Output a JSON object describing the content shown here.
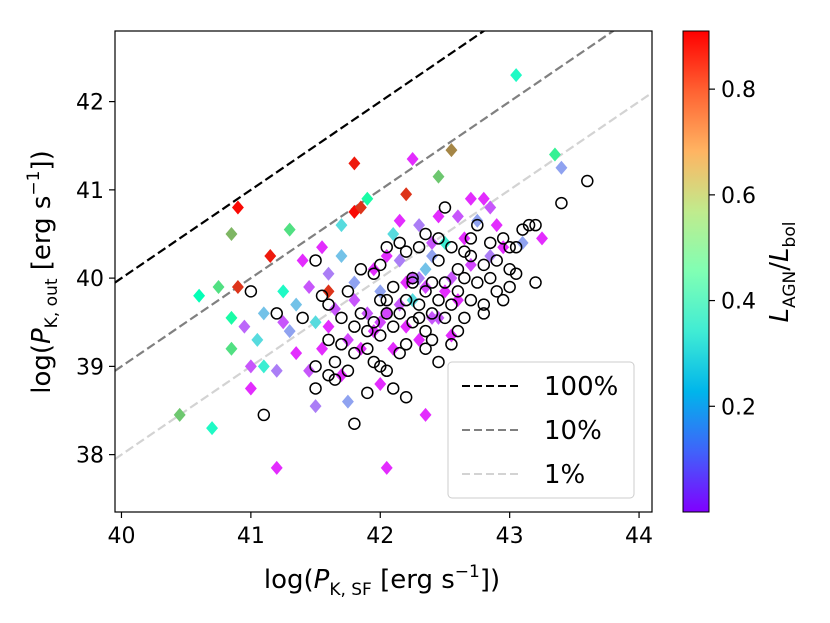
{
  "chart_data": {
    "type": "scatter",
    "xlabel": "log(P_K,SF [erg s^-1])",
    "ylabel": "log(P_K,out [erg s^-1])",
    "xlim": [
      39.95,
      44.1
    ],
    "ylim": [
      37.35,
      42.8
    ],
    "xticks": [
      40,
      41,
      42,
      43,
      44
    ],
    "yticks": [
      38,
      39,
      40,
      41,
      42
    ],
    "grid": false,
    "colorbar": {
      "label": "L_AGN/L_bol",
      "range": [
        0.0,
        0.91
      ],
      "ticks": [
        0.2,
        0.4,
        0.6,
        0.8
      ],
      "colormap": "rainbow"
    },
    "reference_lines": [
      {
        "name": "100%",
        "offset": 0,
        "color": "#000000"
      },
      {
        "name": "10%",
        "offset": -1,
        "color": "#808080"
      },
      {
        "name": "1%",
        "offset": -2,
        "color": "#d3d3d3"
      }
    ],
    "legend": {
      "location": "lower-right",
      "entries": [
        "100%",
        "10%",
        "1%"
      ]
    },
    "open_circles": [
      [
        41.1,
        38.45
      ],
      [
        41.2,
        39.6
      ],
      [
        41.5,
        38.75
      ],
      [
        41.5,
        39.0
      ],
      [
        41.55,
        39.8
      ],
      [
        41.6,
        38.9
      ],
      [
        41.6,
        39.3
      ],
      [
        41.65,
        39.05
      ],
      [
        41.7,
        39.55
      ],
      [
        41.7,
        39.25
      ],
      [
        41.75,
        38.95
      ],
      [
        41.8,
        39.15
      ],
      [
        41.8,
        39.45
      ],
      [
        41.8,
        38.35
      ],
      [
        41.85,
        39.6
      ],
      [
        41.9,
        39.2
      ],
      [
        41.9,
        38.7
      ],
      [
        41.95,
        39.5
      ],
      [
        41.95,
        39.05
      ],
      [
        42.0,
        39.75
      ],
      [
        42.0,
        39.35
      ],
      [
        42.0,
        40.15
      ],
      [
        42.05,
        39.6
      ],
      [
        42.05,
        38.95
      ],
      [
        42.1,
        39.9
      ],
      [
        42.1,
        39.45
      ],
      [
        42.1,
        38.75
      ],
      [
        42.15,
        39.6
      ],
      [
        42.15,
        40.4
      ],
      [
        42.2,
        39.25
      ],
      [
        42.2,
        39.75
      ],
      [
        42.25,
        39.5
      ],
      [
        42.25,
        39.95
      ],
      [
        42.3,
        39.7
      ],
      [
        42.3,
        40.35
      ],
      [
        42.35,
        39.4
      ],
      [
        42.35,
        39.85
      ],
      [
        42.35,
        40.5
      ],
      [
        42.4,
        39.6
      ],
      [
        42.4,
        39.95
      ],
      [
        42.45,
        39.75
      ],
      [
        42.45,
        40.2
      ],
      [
        42.45,
        39.05
      ],
      [
        42.5,
        39.55
      ],
      [
        42.5,
        39.95
      ],
      [
        42.55,
        40.35
      ],
      [
        42.55,
        39.7
      ],
      [
        42.6,
        40.1
      ],
      [
        42.6,
        39.85
      ],
      [
        42.65,
        39.55
      ],
      [
        42.65,
        40.0
      ],
      [
        42.7,
        39.75
      ],
      [
        42.7,
        40.45
      ],
      [
        42.75,
        39.95
      ],
      [
        42.75,
        40.6
      ],
      [
        42.8,
        39.7
      ],
      [
        42.85,
        40.0
      ],
      [
        42.9,
        40.2
      ],
      [
        42.9,
        39.85
      ],
      [
        42.95,
        40.45
      ],
      [
        43.0,
        40.1
      ],
      [
        43.0,
        39.9
      ],
      [
        43.05,
        40.35
      ],
      [
        43.1,
        40.55
      ],
      [
        43.15,
        40.6
      ],
      [
        43.2,
        39.95
      ],
      [
        43.2,
        40.6
      ],
      [
        43.4,
        40.85
      ],
      [
        43.6,
        41.1
      ],
      [
        41.0,
        39.85
      ],
      [
        41.5,
        40.2
      ],
      [
        41.85,
        40.1
      ],
      [
        42.05,
        40.35
      ],
      [
        42.2,
        40.3
      ],
      [
        42.35,
        39.2
      ],
      [
        42.5,
        40.8
      ],
      [
        42.7,
        40.25
      ],
      [
        42.85,
        40.4
      ],
      [
        41.4,
        39.55
      ],
      [
        41.6,
        39.7
      ],
      [
        41.75,
        39.85
      ],
      [
        41.9,
        39.4
      ],
      [
        42.0,
        39.0
      ],
      [
        42.15,
        39.15
      ],
      [
        42.3,
        39.55
      ],
      [
        42.4,
        39.3
      ],
      [
        42.6,
        39.4
      ],
      [
        42.8,
        39.6
      ],
      [
        42.95,
        39.75
      ],
      [
        43.05,
        40.05
      ],
      [
        42.25,
        40.0
      ],
      [
        42.45,
        40.45
      ],
      [
        42.65,
        40.3
      ],
      [
        42.2,
        38.65
      ],
      [
        41.95,
        40.05
      ],
      [
        42.55,
        39.25
      ],
      [
        42.8,
        40.15
      ],
      [
        41.65,
        38.85
      ],
      [
        43.0,
        40.35
      ],
      [
        42.05,
        39.75
      ]
    ],
    "diamonds": [
      [
        40.45,
        38.45,
        0.65
      ],
      [
        40.6,
        39.8,
        0.45
      ],
      [
        40.7,
        38.3,
        0.4
      ],
      [
        40.75,
        39.9,
        0.6
      ],
      [
        40.85,
        39.55,
        0.5
      ],
      [
        40.85,
        39.2,
        0.6
      ],
      [
        40.85,
        40.5,
        0.68
      ],
      [
        40.9,
        40.8,
        0.9
      ],
      [
        40.9,
        39.9,
        0.85
      ],
      [
        40.95,
        39.45,
        0.12
      ],
      [
        41.0,
        39.0,
        0.1
      ],
      [
        41.0,
        38.75,
        0.05
      ],
      [
        41.05,
        39.3,
        0.3
      ],
      [
        41.1,
        39.0,
        0.35
      ],
      [
        41.1,
        39.6,
        0.25
      ],
      [
        41.15,
        40.25,
        0.88
      ],
      [
        41.2,
        38.95,
        0.15
      ],
      [
        41.2,
        37.85,
        0.05
      ],
      [
        41.25,
        39.85,
        0.4
      ],
      [
        41.25,
        39.5,
        0.1
      ],
      [
        41.3,
        39.4,
        0.2
      ],
      [
        41.3,
        40.55,
        0.6
      ],
      [
        41.35,
        39.7,
        0.25
      ],
      [
        41.35,
        39.15,
        0.05
      ],
      [
        41.4,
        40.2,
        0.05
      ],
      [
        41.45,
        38.95,
        0.1
      ],
      [
        41.5,
        38.55,
        0.15
      ],
      [
        41.5,
        39.5,
        0.3
      ],
      [
        41.55,
        39.2,
        0.05
      ],
      [
        41.6,
        39.85,
        0.85
      ],
      [
        41.6,
        40.05,
        0.15
      ],
      [
        41.65,
        39.65,
        0.1
      ],
      [
        41.7,
        38.9,
        0.05
      ],
      [
        41.7,
        40.6,
        0.3
      ],
      [
        41.75,
        39.3,
        0.08
      ],
      [
        41.75,
        38.6,
        0.2
      ],
      [
        41.8,
        39.95,
        0.2
      ],
      [
        41.8,
        41.3,
        0.88
      ],
      [
        41.8,
        40.75,
        0.9
      ],
      [
        41.85,
        40.8,
        0.85
      ],
      [
        41.85,
        39.2,
        0.05
      ],
      [
        41.9,
        39.6,
        0.1
      ],
      [
        41.9,
        40.9,
        0.5
      ],
      [
        41.95,
        39.4,
        0.06
      ],
      [
        42.0,
        39.85,
        0.2
      ],
      [
        42.0,
        38.8,
        0.05
      ],
      [
        42.05,
        37.85,
        0.05
      ],
      [
        42.05,
        39.6,
        0.08
      ],
      [
        42.1,
        40.5,
        0.3
      ],
      [
        42.1,
        39.2,
        0.05
      ],
      [
        42.15,
        40.2,
        0.15
      ],
      [
        42.15,
        39.7,
        0.1
      ],
      [
        42.2,
        40.95,
        0.85
      ],
      [
        42.2,
        39.45,
        0.05
      ],
      [
        42.25,
        41.35,
        0.05
      ],
      [
        42.25,
        40.0,
        0.1
      ],
      [
        42.3,
        40.6,
        0.15
      ],
      [
        42.3,
        39.3,
        0.05
      ],
      [
        42.35,
        39.9,
        0.08
      ],
      [
        42.35,
        38.45,
        0.05
      ],
      [
        42.4,
        40.25,
        0.2
      ],
      [
        42.4,
        39.55,
        0.1
      ],
      [
        42.45,
        41.15,
        0.65
      ],
      [
        42.45,
        40.7,
        0.05
      ],
      [
        42.5,
        39.85,
        0.05
      ],
      [
        42.5,
        40.4,
        0.35
      ],
      [
        42.55,
        41.45,
        0.75
      ],
      [
        42.55,
        40.0,
        0.1
      ],
      [
        42.6,
        40.7,
        0.1
      ],
      [
        42.6,
        39.75,
        0.05
      ],
      [
        42.65,
        40.45,
        0.05
      ],
      [
        42.7,
        40.9,
        0.05
      ],
      [
        42.7,
        40.15,
        0.08
      ],
      [
        42.75,
        40.65,
        0.2
      ],
      [
        42.8,
        40.9,
        0.05
      ],
      [
        42.85,
        40.25,
        0.15
      ],
      [
        42.85,
        40.8,
        0.1
      ],
      [
        42.9,
        40.6,
        0.05
      ],
      [
        42.95,
        40.35,
        0.05
      ],
      [
        43.05,
        42.3,
        0.4
      ],
      [
        43.1,
        40.4,
        0.2
      ],
      [
        43.25,
        40.45,
        0.05
      ],
      [
        43.35,
        41.4,
        0.55
      ],
      [
        43.4,
        41.25,
        0.2
      ],
      [
        42.05,
        40.25,
        0.05
      ],
      [
        42.2,
        39.95,
        0.05
      ],
      [
        42.3,
        40.0,
        0.15
      ],
      [
        42.4,
        40.4,
        0.1
      ],
      [
        42.0,
        39.5,
        0.08
      ],
      [
        41.95,
        40.1,
        0.05
      ],
      [
        41.7,
        40.25,
        0.25
      ],
      [
        41.55,
        40.35,
        0.05
      ],
      [
        42.25,
        39.75,
        0.3
      ],
      [
        42.35,
        40.1,
        0.25
      ],
      [
        42.45,
        39.55,
        0.1
      ],
      [
        42.55,
        39.35,
        0.05
      ],
      [
        41.6,
        39.45,
        0.05
      ],
      [
        41.8,
        39.75,
        0.1
      ],
      [
        41.45,
        39.9,
        0.1
      ],
      [
        42.15,
        40.65,
        0.05
      ]
    ]
  }
}
